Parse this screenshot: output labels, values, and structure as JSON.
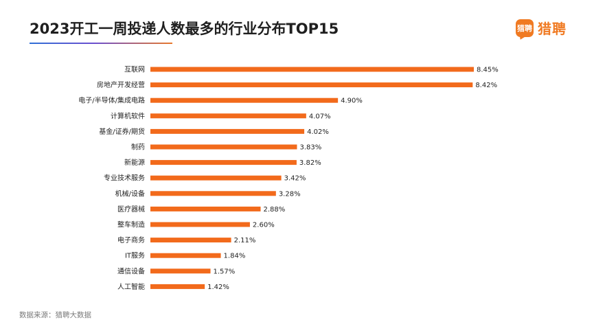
{
  "header": {
    "title": "2023开工一周投递人数最多的行业分布TOP15"
  },
  "logo": {
    "badge_text": "猎聘",
    "brand_text": "猎聘"
  },
  "footer": {
    "source": "数据来源：猎聘大数据"
  },
  "colors": {
    "bar": "#f26a1b",
    "brand": "#f07a22"
  },
  "chart_data": {
    "type": "bar",
    "orientation": "horizontal",
    "title": "2023开工一周投递人数最多的行业分布TOP15",
    "categories": [
      "互联网",
      "房地产开发经营",
      "电子/半导体/集成电路",
      "计算机软件",
      "基金/证券/期货",
      "制药",
      "新能源",
      "专业技术服务",
      "机械/设备",
      "医疗器械",
      "整车制造",
      "电子商务",
      "IT服务",
      "通信设备",
      "人工智能"
    ],
    "values": [
      8.45,
      8.42,
      4.9,
      4.07,
      4.02,
      3.83,
      3.82,
      3.42,
      3.28,
      2.88,
      2.6,
      2.11,
      1.84,
      1.57,
      1.42
    ],
    "value_labels": [
      "8.45%",
      "8.42%",
      "4.90%",
      "4.07%",
      "4.02%",
      "3.83%",
      "3.82%",
      "3.42%",
      "3.28%",
      "2.88%",
      "2.60%",
      "2.11%",
      "1.84%",
      "1.57%",
      "1.42%"
    ],
    "unit": "%",
    "xlim": [
      0,
      8.45
    ],
    "grid": false,
    "legend": "none"
  }
}
